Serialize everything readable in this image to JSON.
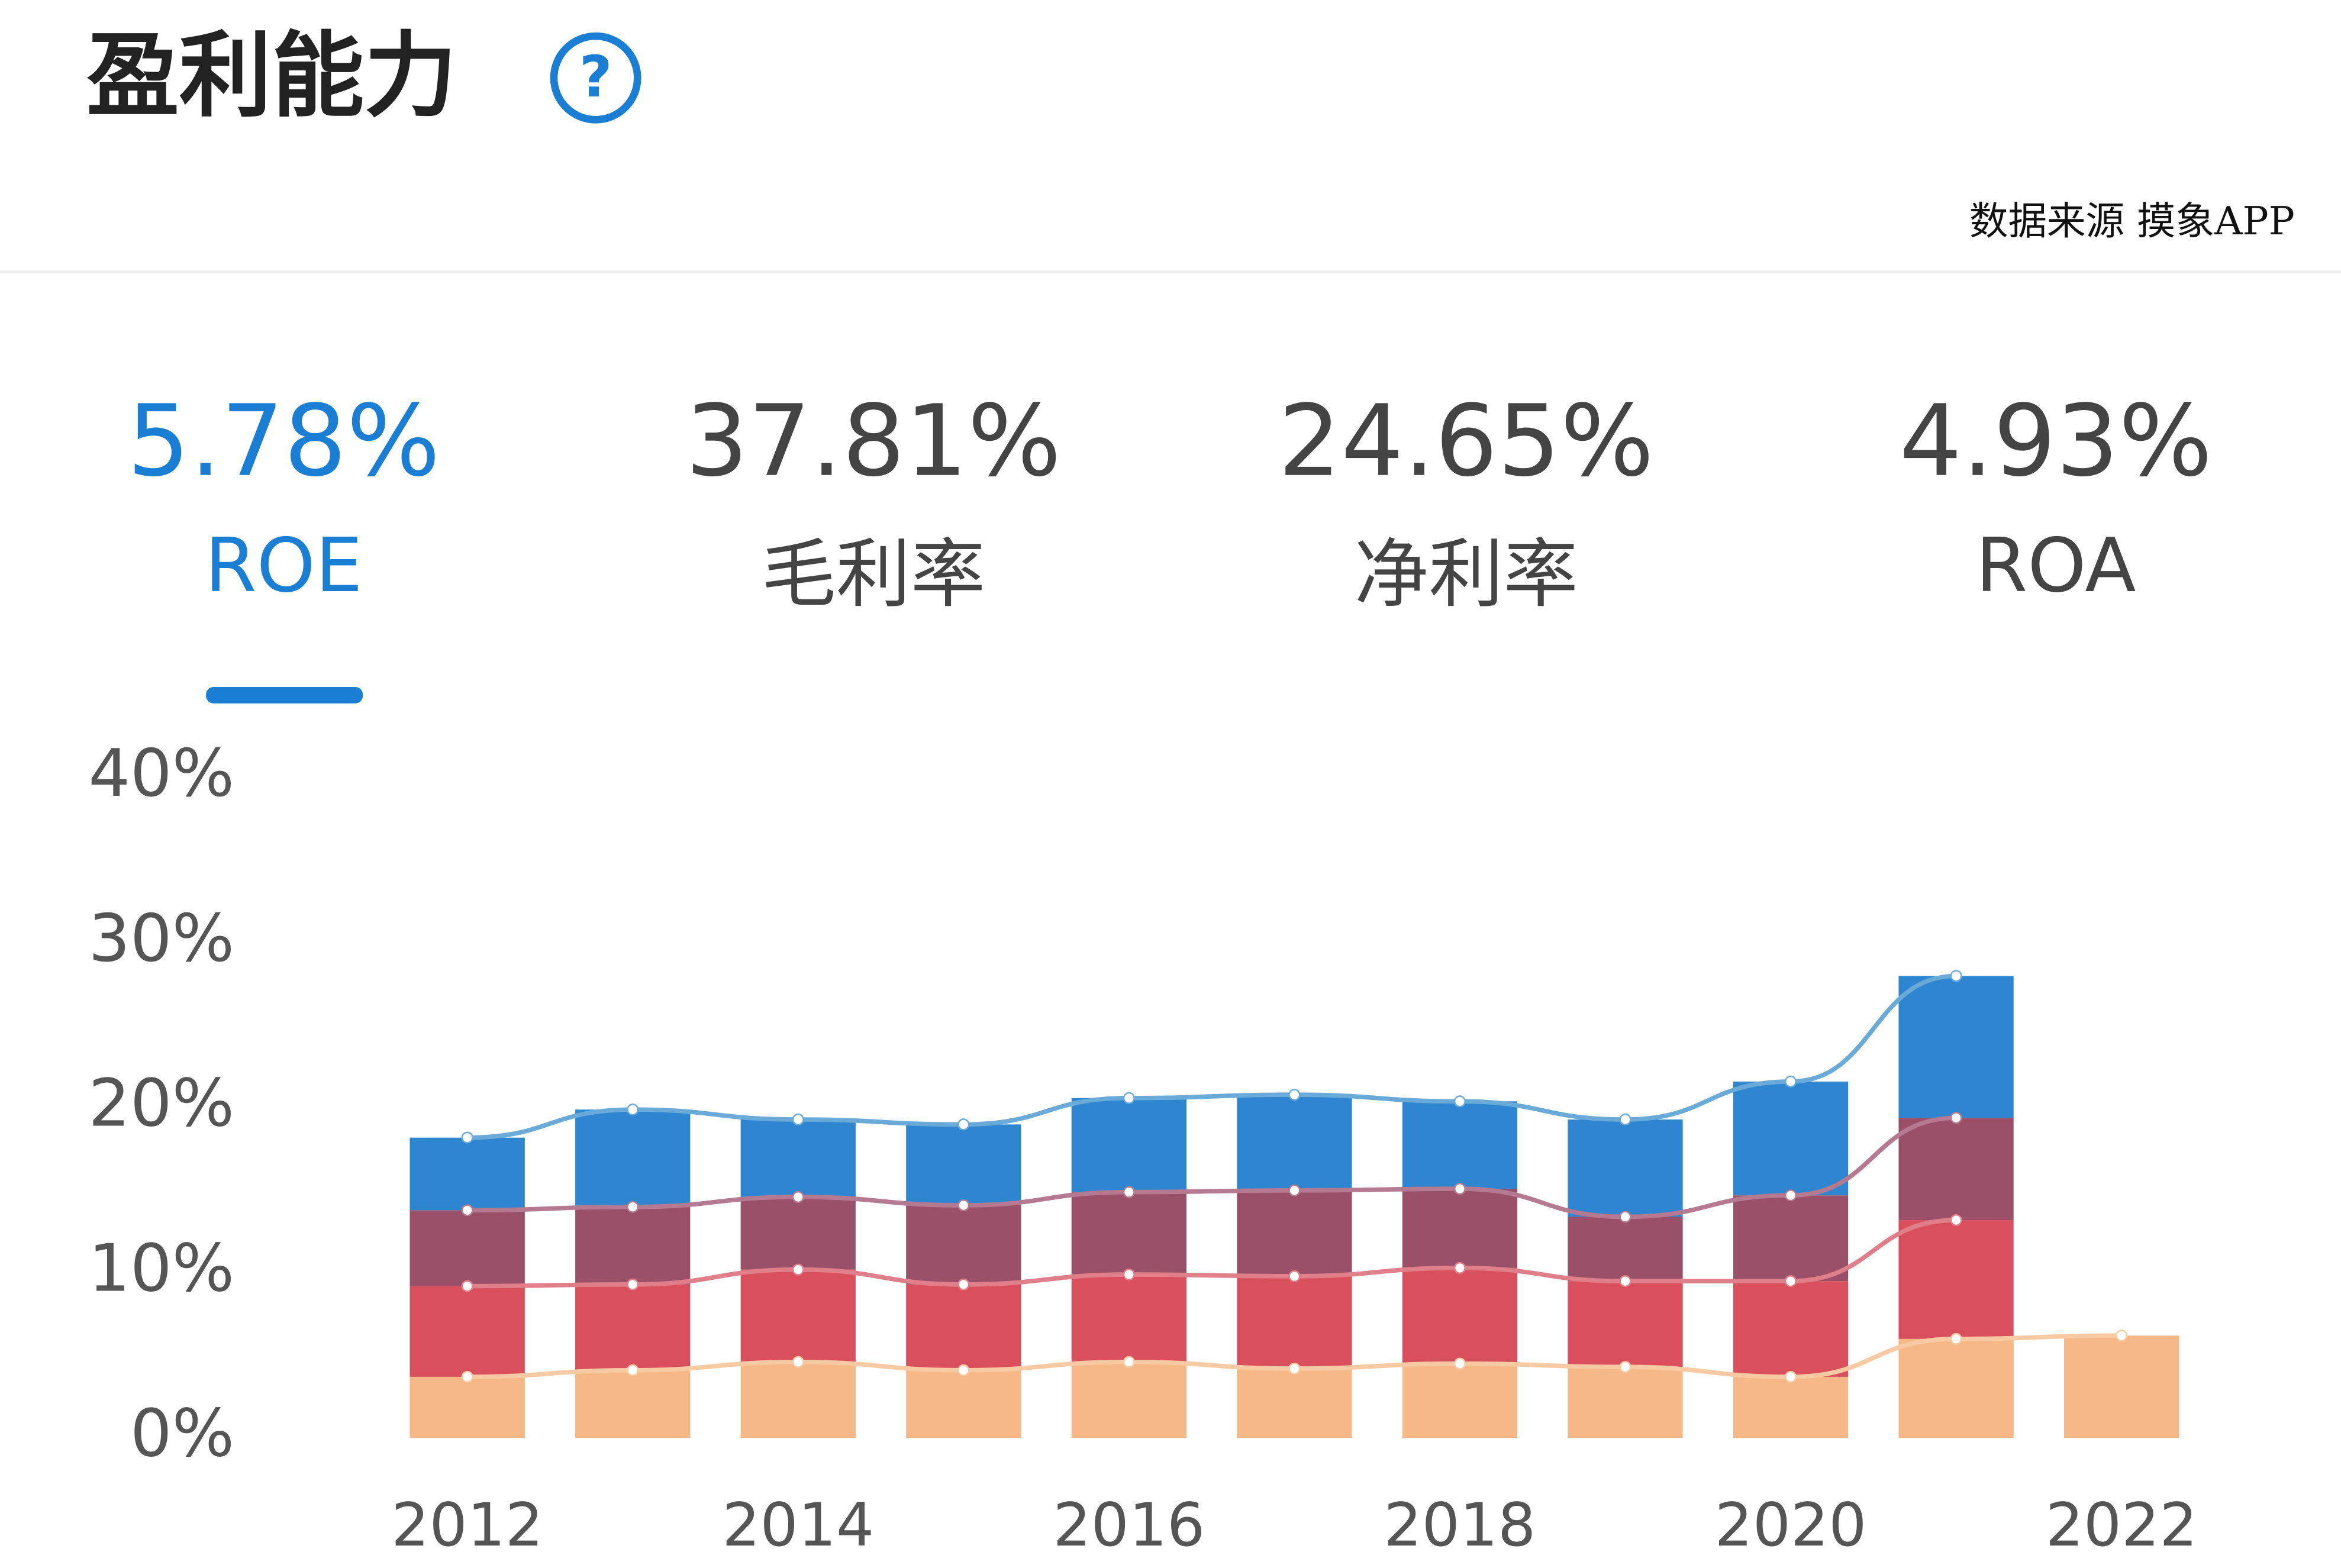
{
  "header": {
    "title": "盈利能力",
    "source": "数据来源 摸象APP"
  },
  "tabs": [
    {
      "value": "5.78%",
      "label": "ROE"
    },
    {
      "value": "37.81%",
      "label": "毛利率"
    },
    {
      "value": "24.65%",
      "label": "净利率"
    },
    {
      "value": "4.93%",
      "label": "ROA"
    }
  ],
  "chart_data": {
    "type": "stacked_bar",
    "categories": [
      "2012",
      null,
      "2014",
      null,
      "2016",
      null,
      "2018",
      null,
      "2020",
      null,
      "2022"
    ],
    "series": [
      {
        "color": "#f5b886",
        "line_color": "#f7caa4",
        "values": [
          3.7,
          4.1,
          4.6,
          4.1,
          4.6,
          4.2,
          4.5,
          4.3,
          3.7,
          6.0,
          6.2
        ]
      },
      {
        "color": "#d94f5c",
        "line_color": "#e07f8a",
        "values": [
          5.5,
          5.2,
          5.6,
          5.2,
          5.3,
          5.6,
          5.8,
          5.2,
          5.8,
          7.2,
          null
        ]
      },
      {
        "color": "#9b5069",
        "line_color": "#b57a90",
        "values": [
          4.6,
          4.7,
          4.4,
          4.8,
          5.0,
          5.2,
          4.8,
          3.9,
          5.2,
          6.2,
          null
        ]
      },
      {
        "color": "#2e86d0",
        "line_color": "#6aaad8",
        "values": [
          4.4,
          5.9,
          4.7,
          4.9,
          5.7,
          5.8,
          5.3,
          5.9,
          6.9,
          8.6,
          null
        ]
      }
    ],
    "ylim": [
      0,
      40
    ],
    "yticks": [
      {
        "value": 0,
        "label": "0%"
      },
      {
        "value": 10,
        "label": "10%"
      },
      {
        "value": 20,
        "label": "20%"
      },
      {
        "value": 30,
        "label": "30%"
      },
      {
        "value": 40,
        "label": "40%"
      }
    ]
  }
}
